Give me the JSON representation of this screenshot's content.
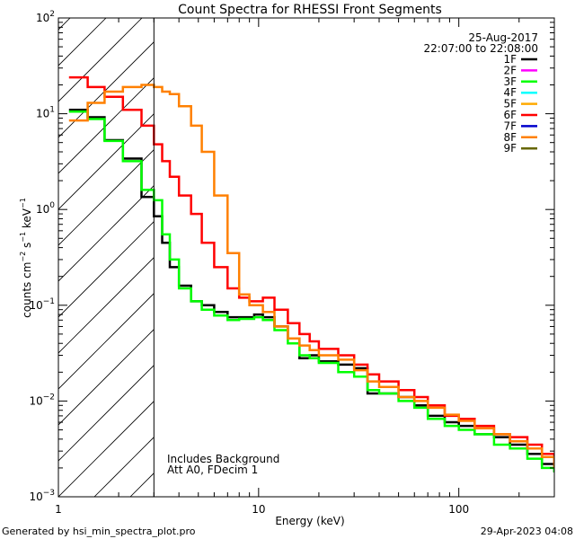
{
  "chart_data": {
    "type": "line",
    "title": "Count Spectra for RHESSI Front Segments",
    "xlabel": "Energy (keV)",
    "ylabel_parts": [
      "counts cm",
      "−2",
      " s",
      "−1",
      " keV",
      "−1"
    ],
    "x_scale": "log",
    "y_scale": "log",
    "xlim": [
      1,
      300
    ],
    "ylim": [
      0.001,
      100
    ],
    "x_major_ticks": [
      1,
      10,
      100
    ],
    "x_tick_labels": [
      "1",
      "10",
      "100"
    ],
    "y_major_ticks": [
      {
        "value": 0.001,
        "base": "10",
        "exp": "−3"
      },
      {
        "value": 0.01,
        "base": "10",
        "exp": "−2"
      },
      {
        "value": 0.1,
        "base": "10",
        "exp": "−1"
      },
      {
        "value": 1,
        "base": "10",
        "exp": "0"
      },
      {
        "value": 10,
        "base": "10",
        "exp": "1"
      },
      {
        "value": 100,
        "base": "10",
        "exp": "2"
      }
    ],
    "date": "25-Aug-2017",
    "time_range": "22:07:00 to 22:08:00",
    "legend": [
      {
        "name": "1F",
        "color": "#000000"
      },
      {
        "name": "2F",
        "color": "#ff00ff"
      },
      {
        "name": "3F",
        "color": "#00ff00"
      },
      {
        "name": "4F",
        "color": "#00ffff"
      },
      {
        "name": "5F",
        "color": "#ffaa00"
      },
      {
        "name": "6F",
        "color": "#ff0000"
      },
      {
        "name": "7F",
        "color": "#0000cc"
      },
      {
        "name": "8F",
        "color": "#ff8000"
      },
      {
        "name": "9F",
        "color": "#666600"
      }
    ],
    "shaded_region": {
      "x_from": 1,
      "x_to": 3,
      "pattern": "diagonal hatch"
    },
    "annotations": [
      "Includes Background",
      "Att A0, FDecim 1"
    ],
    "series": [
      {
        "name": "1F",
        "color": "#000000",
        "points": [
          [
            1.13,
            11
          ],
          [
            1.4,
            9.2
          ],
          [
            1.7,
            5.3
          ],
          [
            2.1,
            3.4
          ],
          [
            2.6,
            1.35
          ],
          [
            3.0,
            0.85
          ],
          [
            3.3,
            0.45
          ],
          [
            3.6,
            0.25
          ],
          [
            4.0,
            0.16
          ],
          [
            4.6,
            0.11
          ],
          [
            5.2,
            0.1
          ],
          [
            6.0,
            0.085
          ],
          [
            7.0,
            0.075
          ],
          [
            8.0,
            0.075
          ],
          [
            9.5,
            0.08
          ],
          [
            10.5,
            0.075
          ],
          [
            12,
            0.06
          ],
          [
            14,
            0.045
          ],
          [
            16,
            0.028
          ],
          [
            18,
            0.03
          ],
          [
            20,
            0.026
          ],
          [
            25,
            0.024
          ],
          [
            30,
            0.022
          ],
          [
            35,
            0.012
          ],
          [
            40,
            0.012
          ],
          [
            50,
            0.011
          ],
          [
            60,
            0.009
          ],
          [
            70,
            0.007
          ],
          [
            85,
            0.006
          ],
          [
            100,
            0.0055
          ],
          [
            120,
            0.0045
          ],
          [
            150,
            0.0042
          ],
          [
            180,
            0.0035
          ],
          [
            220,
            0.0028
          ],
          [
            260,
            0.0022
          ],
          [
            300,
            0.0018
          ]
        ]
      },
      {
        "name": "3F",
        "color": "#00ff00",
        "points": [
          [
            1.13,
            10.5
          ],
          [
            1.4,
            8.8
          ],
          [
            1.7,
            5.2
          ],
          [
            2.1,
            3.2
          ],
          [
            2.6,
            1.6
          ],
          [
            3.0,
            1.25
          ],
          [
            3.3,
            0.55
          ],
          [
            3.6,
            0.3
          ],
          [
            4.0,
            0.15
          ],
          [
            4.6,
            0.11
          ],
          [
            5.2,
            0.09
          ],
          [
            6.0,
            0.078
          ],
          [
            7.0,
            0.07
          ],
          [
            8.0,
            0.072
          ],
          [
            9.5,
            0.075
          ],
          [
            10.5,
            0.07
          ],
          [
            12,
            0.055
          ],
          [
            14,
            0.04
          ],
          [
            16,
            0.03
          ],
          [
            18,
            0.028
          ],
          [
            20,
            0.025
          ],
          [
            25,
            0.02
          ],
          [
            30,
            0.018
          ],
          [
            35,
            0.013
          ],
          [
            40,
            0.012
          ],
          [
            50,
            0.01
          ],
          [
            60,
            0.0085
          ],
          [
            70,
            0.0065
          ],
          [
            85,
            0.0055
          ],
          [
            100,
            0.005
          ],
          [
            120,
            0.0045
          ],
          [
            150,
            0.0035
          ],
          [
            180,
            0.0032
          ],
          [
            220,
            0.0025
          ],
          [
            260,
            0.002
          ],
          [
            300,
            0.0018
          ]
        ]
      },
      {
        "name": "6F",
        "color": "#ff0000",
        "points": [
          [
            1.13,
            24
          ],
          [
            1.4,
            19
          ],
          [
            1.7,
            15
          ],
          [
            2.1,
            11
          ],
          [
            2.6,
            7.5
          ],
          [
            3.0,
            4.8
          ],
          [
            3.3,
            3.2
          ],
          [
            3.6,
            2.2
          ],
          [
            4.0,
            1.4
          ],
          [
            4.6,
            0.9
          ],
          [
            5.2,
            0.45
          ],
          [
            6.0,
            0.25
          ],
          [
            7.0,
            0.15
          ],
          [
            8.0,
            0.12
          ],
          [
            9.0,
            0.11
          ],
          [
            10.5,
            0.12
          ],
          [
            12,
            0.09
          ],
          [
            14,
            0.065
          ],
          [
            16,
            0.05
          ],
          [
            18,
            0.042
          ],
          [
            20,
            0.035
          ],
          [
            25,
            0.03
          ],
          [
            30,
            0.024
          ],
          [
            35,
            0.019
          ],
          [
            40,
            0.016
          ],
          [
            50,
            0.013
          ],
          [
            60,
            0.011
          ],
          [
            70,
            0.009
          ],
          [
            85,
            0.007
          ],
          [
            100,
            0.0065
          ],
          [
            120,
            0.0055
          ],
          [
            150,
            0.0045
          ],
          [
            180,
            0.0042
          ],
          [
            220,
            0.0035
          ],
          [
            260,
            0.0028
          ],
          [
            300,
            0.0022
          ]
        ]
      },
      {
        "name": "8F",
        "color": "#ff8000",
        "points": [
          [
            1.13,
            8.5
          ],
          [
            1.4,
            13
          ],
          [
            1.7,
            17
          ],
          [
            2.1,
            19
          ],
          [
            2.6,
            20
          ],
          [
            3.0,
            19
          ],
          [
            3.3,
            17
          ],
          [
            3.6,
            16
          ],
          [
            4.0,
            12
          ],
          [
            4.6,
            7.5
          ],
          [
            5.2,
            4
          ],
          [
            6.0,
            1.4
          ],
          [
            7.0,
            0.35
          ],
          [
            8.0,
            0.13
          ],
          [
            9.0,
            0.1
          ],
          [
            10.5,
            0.085
          ],
          [
            12,
            0.06
          ],
          [
            14,
            0.045
          ],
          [
            16,
            0.038
          ],
          [
            18,
            0.034
          ],
          [
            20,
            0.03
          ],
          [
            25,
            0.027
          ],
          [
            30,
            0.021
          ],
          [
            35,
            0.016
          ],
          [
            40,
            0.014
          ],
          [
            50,
            0.011
          ],
          [
            60,
            0.01
          ],
          [
            70,
            0.0085
          ],
          [
            85,
            0.0072
          ],
          [
            100,
            0.0062
          ],
          [
            120,
            0.0052
          ],
          [
            150,
            0.0045
          ],
          [
            180,
            0.0038
          ],
          [
            220,
            0.0032
          ],
          [
            260,
            0.0026
          ],
          [
            300,
            0.002
          ]
        ]
      }
    ]
  },
  "footer": {
    "generated_by": "Generated by hsi_min_spectra_plot.pro",
    "timestamp": "29-Apr-2023 04:08"
  }
}
